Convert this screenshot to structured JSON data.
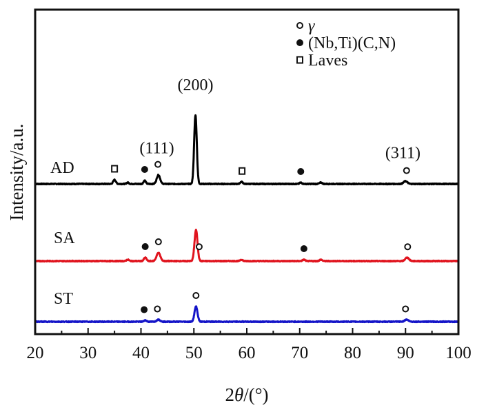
{
  "chart_data": {
    "type": "line",
    "title": "",
    "xlabel": "2θ/(°)",
    "xlabel_parts": {
      "prefix": "2",
      "symbol": "θ",
      "suffix": "/(°)"
    },
    "ylabel": "Intensity/a.u.",
    "xlim": [
      20,
      100
    ],
    "x_major_ticks": [
      20,
      30,
      40,
      50,
      60,
      70,
      80,
      90,
      100
    ],
    "x_minor_ticks": [
      25,
      35,
      45,
      55,
      65,
      75,
      85,
      95
    ],
    "y_ticks": [],
    "grid": false,
    "legend": {
      "placement": "top-right",
      "entries": [
        {
          "marker": "open-circle",
          "label": "γ"
        },
        {
          "marker": "filled-circle",
          "label": "(Nb,Ti)(C,N)"
        },
        {
          "marker": "open-square",
          "label": "Laves"
        }
      ]
    },
    "series": [
      {
        "name": "AD",
        "color": "#000000",
        "offset": 2.0,
        "peaks": [
          {
            "x": 35.0,
            "height": 0.06,
            "width": 0.35
          },
          {
            "x": 37.5,
            "height": 0.02,
            "width": 0.3
          },
          {
            "x": 40.7,
            "height": 0.05,
            "width": 0.3
          },
          {
            "x": 43.3,
            "height": 0.13,
            "width": 0.45
          },
          {
            "x": 50.3,
            "height": 1.0,
            "width": 0.35
          },
          {
            "x": 59.0,
            "height": 0.03,
            "width": 0.35
          },
          {
            "x": 70.2,
            "height": 0.02,
            "width": 0.3
          },
          {
            "x": 74.0,
            "height": 0.02,
            "width": 0.35
          },
          {
            "x": 90.0,
            "height": 0.04,
            "width": 0.5
          }
        ],
        "markers": [
          {
            "x": 35.0,
            "type": "open-square"
          },
          {
            "x": 40.7,
            "type": "filled-circle"
          },
          {
            "x": 43.2,
            "type": "open-circle"
          },
          {
            "x": 59.1,
            "type": "open-square"
          },
          {
            "x": 70.2,
            "type": "filled-circle"
          },
          {
            "x": 90.2,
            "type": "open-circle"
          }
        ]
      },
      {
        "name": "SA",
        "color": "#e0141e",
        "offset": 0.88,
        "peaks": [
          {
            "x": 37.5,
            "height": 0.02,
            "width": 0.35
          },
          {
            "x": 40.8,
            "height": 0.05,
            "width": 0.35
          },
          {
            "x": 43.3,
            "height": 0.12,
            "width": 0.5
          },
          {
            "x": 50.4,
            "height": 0.45,
            "width": 0.4
          },
          {
            "x": 59.0,
            "height": 0.02,
            "width": 0.35
          },
          {
            "x": 70.8,
            "height": 0.02,
            "width": 0.35
          },
          {
            "x": 74.0,
            "height": 0.02,
            "width": 0.35
          },
          {
            "x": 90.3,
            "height": 0.05,
            "width": 0.5
          }
        ],
        "markers": [
          {
            "x": 40.8,
            "type": "filled-circle"
          },
          {
            "x": 43.3,
            "type": "open-circle"
          },
          {
            "x": 51.0,
            "type": "open-circle"
          },
          {
            "x": 70.8,
            "type": "filled-circle"
          },
          {
            "x": 90.4,
            "type": "open-circle"
          }
        ]
      },
      {
        "name": "ST",
        "color": "#1414c8",
        "offset": 0.0,
        "peaks": [
          {
            "x": 40.8,
            "height": 0.02,
            "width": 0.35
          },
          {
            "x": 43.3,
            "height": 0.03,
            "width": 0.45
          },
          {
            "x": 50.4,
            "height": 0.22,
            "width": 0.4
          },
          {
            "x": 90.2,
            "height": 0.03,
            "width": 0.5
          }
        ],
        "markers": [
          {
            "x": 40.6,
            "type": "filled-circle"
          },
          {
            "x": 43.1,
            "type": "open-circle"
          },
          {
            "x": 50.4,
            "type": "open-circle"
          },
          {
            "x": 90.0,
            "type": "open-circle"
          }
        ]
      }
    ],
    "annotations": [
      {
        "text": "(111)",
        "x": 43.0,
        "series": "AD"
      },
      {
        "text": "(200)",
        "x": 50.3,
        "series": "AD"
      },
      {
        "text": "(311)",
        "x": 89.5,
        "series": "AD"
      }
    ]
  }
}
